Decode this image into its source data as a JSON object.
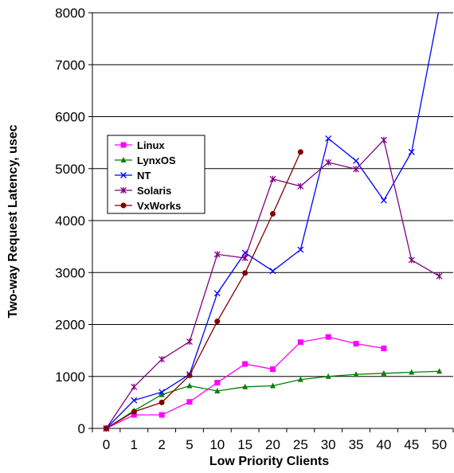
{
  "chart_data": {
    "type": "line",
    "title": "",
    "xlabel": "Low Priority Clients",
    "ylabel": "Two-way Request Latency, usec",
    "categories": [
      "0",
      "1",
      "2",
      "5",
      "10",
      "15",
      "20",
      "25",
      "30",
      "35",
      "40",
      "45",
      "50"
    ],
    "yticks": [
      "0",
      "1000",
      "2000",
      "3000",
      "4000",
      "5000",
      "6000",
      "7000",
      "8000"
    ],
    "ylim": [
      0,
      8000
    ],
    "grid": "horizontal",
    "legend_position": "left",
    "series": [
      {
        "name": "Linux",
        "color": "#ff00ff",
        "marker": "square",
        "values": [
          0,
          260,
          260,
          510,
          880,
          1240,
          1140,
          1660,
          1760,
          1630,
          1540,
          null,
          null
        ]
      },
      {
        "name": "LynxOS",
        "color": "#008000",
        "marker": "triangle",
        "values": [
          0,
          340,
          650,
          820,
          720,
          800,
          820,
          940,
          1000,
          1040,
          1060,
          1080,
          1100
        ]
      },
      {
        "name": "NT",
        "color": "#0000ff",
        "marker": "x",
        "values": [
          0,
          540,
          700,
          1040,
          2600,
          3380,
          3030,
          3440,
          5580,
          5150,
          4390,
          5320,
          8100
        ]
      },
      {
        "name": "Solaris",
        "color": "#800080",
        "marker": "star",
        "values": [
          0,
          800,
          1330,
          1670,
          3350,
          3280,
          4800,
          4660,
          5120,
          4990,
          5550,
          3240,
          2930
        ]
      },
      {
        "name": "VxWorks",
        "color": "#800000",
        "marker": "circle",
        "values": [
          0,
          320,
          500,
          1020,
          2060,
          2990,
          4130,
          5320,
          null,
          null,
          null,
          null,
          null
        ]
      }
    ]
  }
}
